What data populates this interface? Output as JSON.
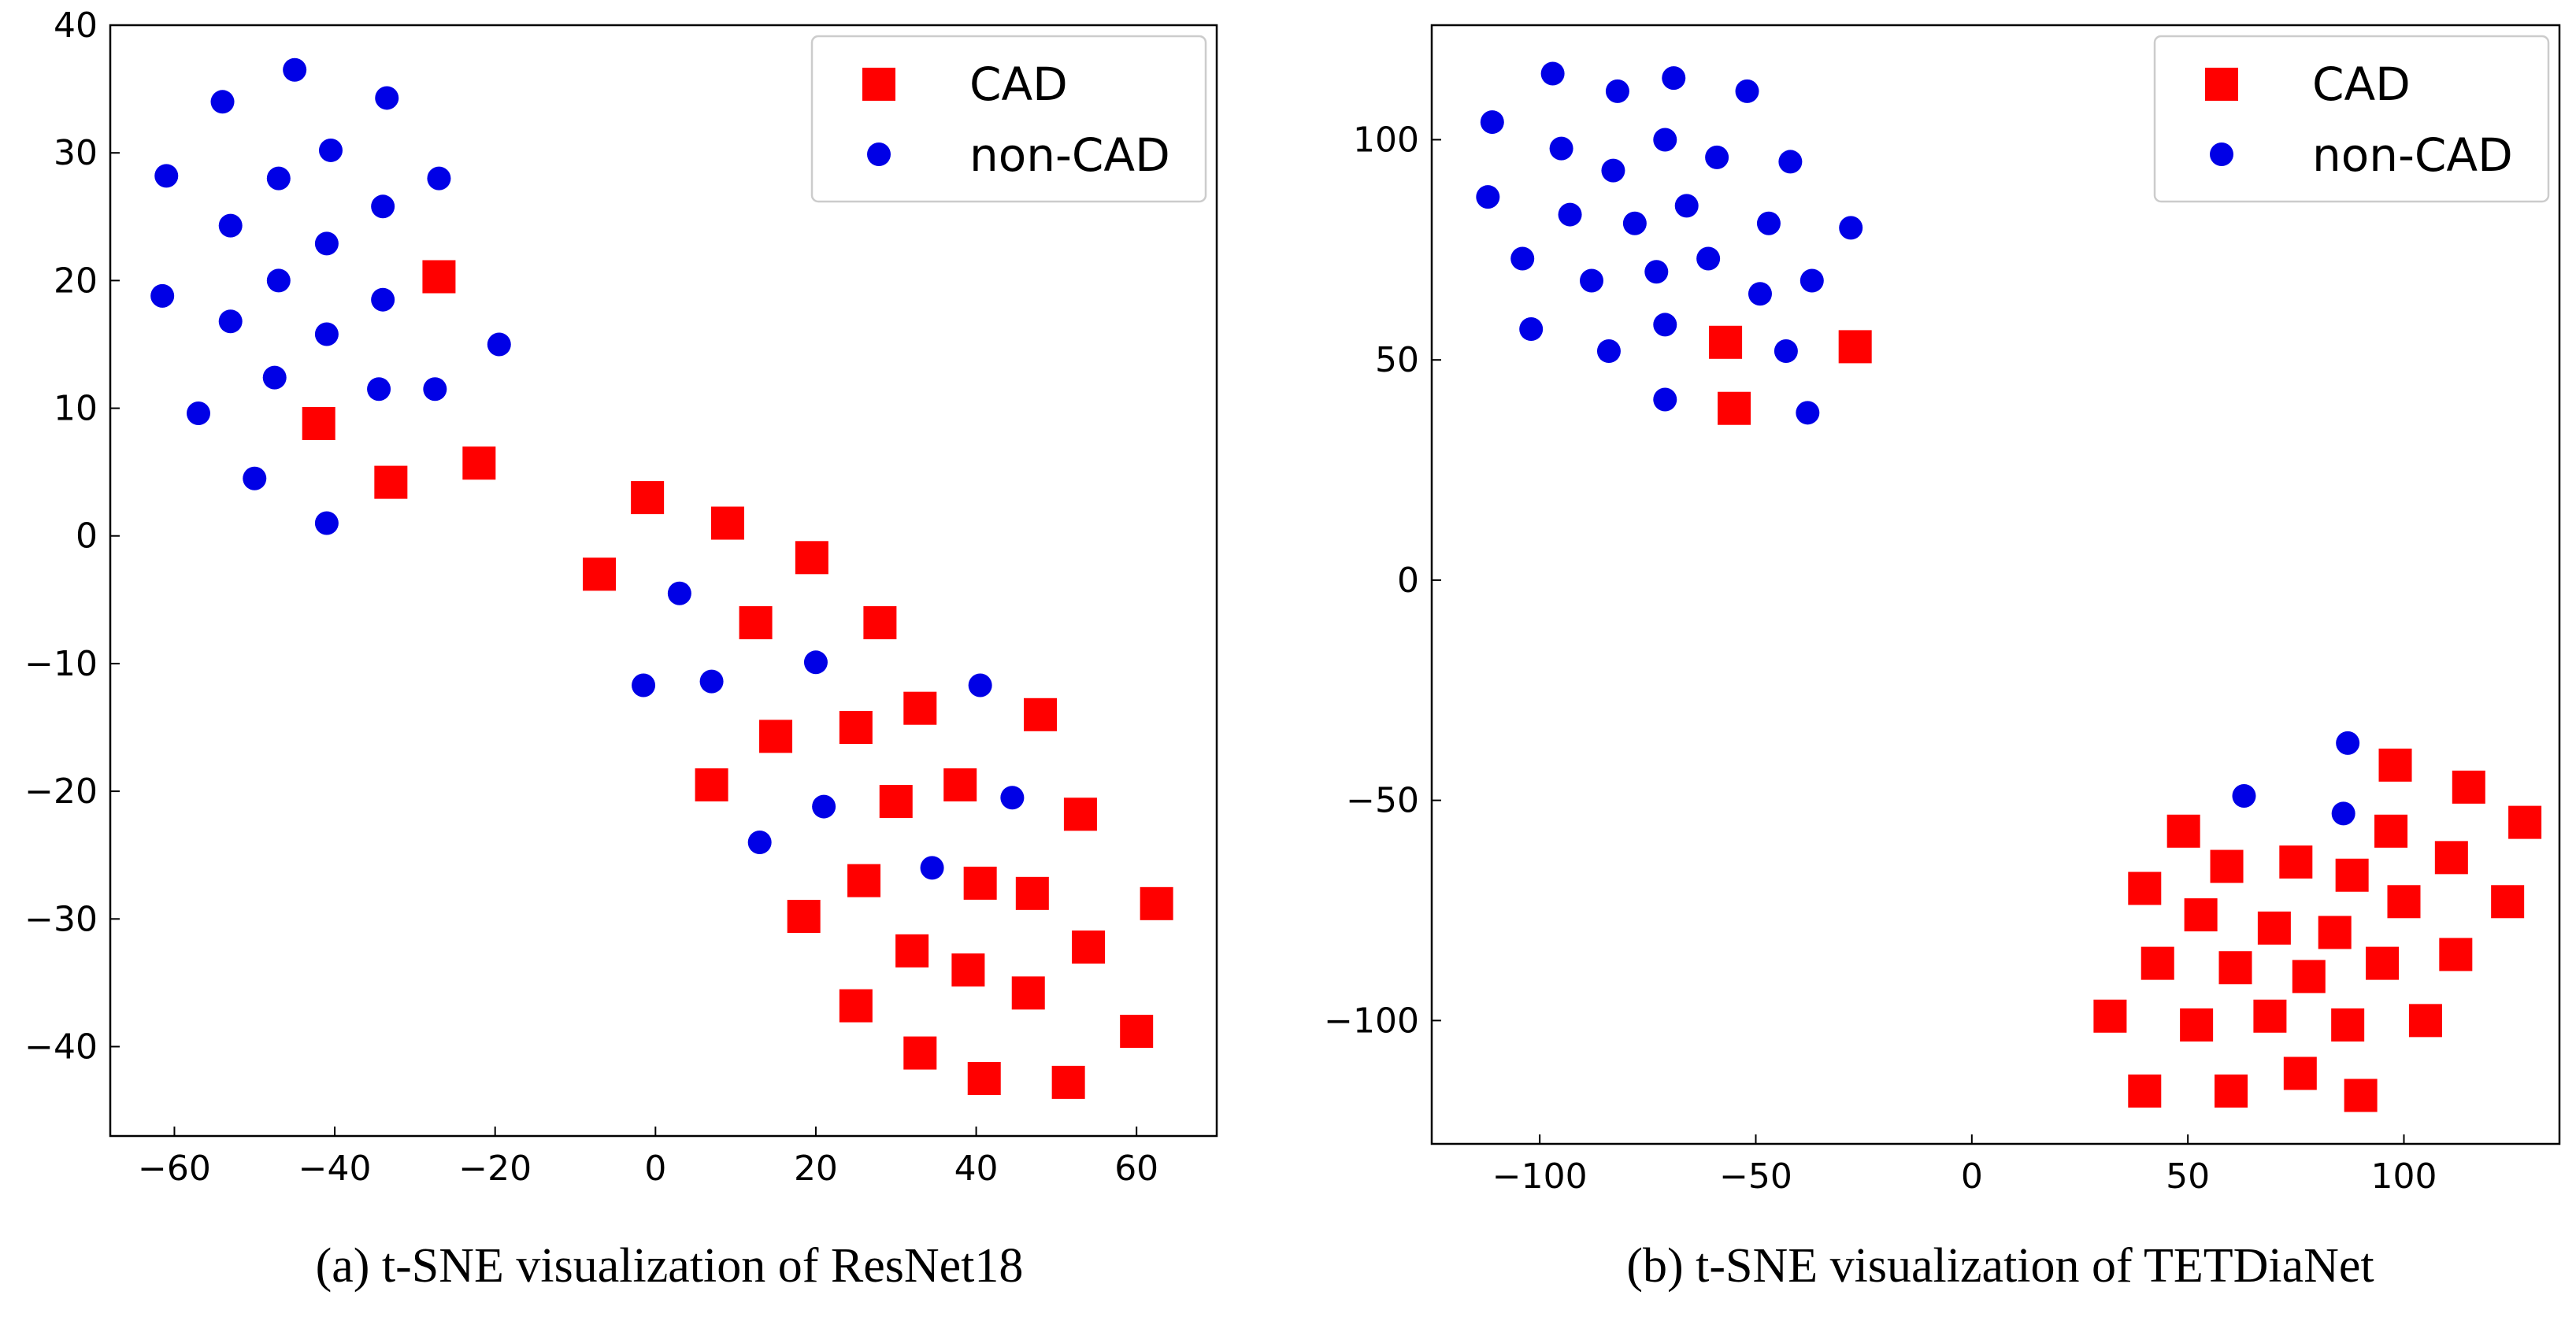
{
  "colors": {
    "cad": "#ff0000",
    "non_cad": "#0000e6",
    "axis": "#000000",
    "legend_border": "#cccccc"
  },
  "chart_data": [
    {
      "type": "scatter",
      "title": "",
      "caption": "(a) t-SNE visualization of ResNet18",
      "xlabel": "",
      "ylabel": "",
      "xlim": [
        -68,
        70
      ],
      "ylim": [
        -47,
        40
      ],
      "xticks": [
        -60,
        -40,
        -20,
        0,
        20,
        40,
        60
      ],
      "yticks": [
        -40,
        -30,
        -20,
        -10,
        0,
        10,
        20,
        30,
        40
      ],
      "xtick_labels": [
        "−60",
        "−40",
        "−20",
        "0",
        "20",
        "40",
        "60"
      ],
      "ytick_labels": [
        "−40",
        "−30",
        "−20",
        "−10",
        "0",
        "10",
        "20",
        "30",
        "40"
      ],
      "legend": {
        "position": "top-right",
        "entries": [
          "CAD",
          "non-CAD"
        ]
      },
      "series": [
        {
          "name": "CAD",
          "marker": "square",
          "points": [
            [
              -27,
              20.3
            ],
            [
              -42,
              8.8
            ],
            [
              -33,
              4.2
            ],
            [
              -22,
              5.7
            ],
            [
              -7,
              -3
            ],
            [
              -1,
              3
            ],
            [
              9,
              1
            ],
            [
              19.5,
              -1.7
            ],
            [
              12.5,
              -6.8
            ],
            [
              28,
              -6.8
            ],
            [
              25,
              -15
            ],
            [
              33,
              -13.5
            ],
            [
              48,
              -14
            ],
            [
              15,
              -15.7
            ],
            [
              7,
              -19.5
            ],
            [
              30,
              -20.8
            ],
            [
              38,
              -19.5
            ],
            [
              53,
              -21.8
            ],
            [
              26,
              -27
            ],
            [
              40.5,
              -27.2
            ],
            [
              47,
              -28
            ],
            [
              18.5,
              -29.8
            ],
            [
              32,
              -32.5
            ],
            [
              39,
              -34
            ],
            [
              54,
              -32.2
            ],
            [
              62.5,
              -28.8
            ],
            [
              25,
              -36.8
            ],
            [
              46.5,
              -35.8
            ],
            [
              60,
              -38.8
            ],
            [
              33,
              -40.5
            ],
            [
              41,
              -42.5
            ],
            [
              51.5,
              -42.8
            ]
          ]
        },
        {
          "name": "non-CAD",
          "marker": "circle",
          "points": [
            [
              -45,
              36.5
            ],
            [
              -54,
              34
            ],
            [
              -33.5,
              34.3
            ],
            [
              -61,
              28.2
            ],
            [
              -47,
              28
            ],
            [
              -40.5,
              30.2
            ],
            [
              -27,
              28
            ],
            [
              -53,
              24.3
            ],
            [
              -34,
              25.8
            ],
            [
              -41,
              22.9
            ],
            [
              -47,
              20
            ],
            [
              -61.5,
              18.8
            ],
            [
              -34,
              18.5
            ],
            [
              -53,
              16.8
            ],
            [
              -41,
              15.8
            ],
            [
              -19.5,
              15
            ],
            [
              -47.5,
              12.4
            ],
            [
              -34.5,
              11.5
            ],
            [
              -27.5,
              11.5
            ],
            [
              -57,
              9.6
            ],
            [
              -50,
              4.5
            ],
            [
              -41,
              1
            ],
            [
              3,
              -4.5
            ],
            [
              -1.5,
              -11.7
            ],
            [
              7,
              -11.4
            ],
            [
              20,
              -9.9
            ],
            [
              40.5,
              -11.7
            ],
            [
              21,
              -21.2
            ],
            [
              44.5,
              -20.5
            ],
            [
              13,
              -24
            ],
            [
              34.5,
              -26
            ]
          ]
        }
      ]
    },
    {
      "type": "scatter",
      "title": "",
      "caption": "(b) t-SNE visualization of TETDiaNet",
      "xlabel": "",
      "ylabel": "",
      "xlim": [
        -125,
        136
      ],
      "ylim": [
        -128,
        126
      ],
      "xticks": [
        -100,
        -50,
        0,
        50,
        100
      ],
      "yticks": [
        -100,
        -50,
        0,
        50,
        100
      ],
      "xtick_labels": [
        "−100",
        "−50",
        "0",
        "50",
        "100"
      ],
      "ytick_labels": [
        "−100",
        "−50",
        "0",
        "50",
        "100"
      ],
      "legend": {
        "position": "top-right",
        "entries": [
          "CAD",
          "non-CAD"
        ]
      },
      "series": [
        {
          "name": "CAD",
          "marker": "square",
          "points": [
            [
              -57,
              54
            ],
            [
              -27,
              53
            ],
            [
              -55,
              39
            ],
            [
              98,
              -42
            ],
            [
              115,
              -47
            ],
            [
              128,
              -55
            ],
            [
              49,
              -57
            ],
            [
              97,
              -57
            ],
            [
              111,
              -63
            ],
            [
              59,
              -65
            ],
            [
              75,
              -64
            ],
            [
              88,
              -67
            ],
            [
              40,
              -70
            ],
            [
              100,
              -73
            ],
            [
              124,
              -73
            ],
            [
              53,
              -76
            ],
            [
              70,
              -79
            ],
            [
              84,
              -80
            ],
            [
              43,
              -87
            ],
            [
              61,
              -88
            ],
            [
              95,
              -87
            ],
            [
              112,
              -85
            ],
            [
              78,
              -90
            ],
            [
              32,
              -99
            ],
            [
              52,
              -101
            ],
            [
              69,
              -99
            ],
            [
              87,
              -101
            ],
            [
              105,
              -100
            ],
            [
              40,
              -116
            ],
            [
              60,
              -116
            ],
            [
              76,
              -112
            ],
            [
              90,
              -117
            ]
          ]
        },
        {
          "name": "non-CAD",
          "marker": "circle",
          "points": [
            [
              -97,
              115
            ],
            [
              -69,
              114
            ],
            [
              -82,
              111
            ],
            [
              -52,
              111
            ],
            [
              -111,
              104
            ],
            [
              -95,
              98
            ],
            [
              -71,
              100
            ],
            [
              -59,
              96
            ],
            [
              -42,
              95
            ],
            [
              -83,
              93
            ],
            [
              -112,
              87
            ],
            [
              -66,
              85
            ],
            [
              -93,
              83
            ],
            [
              -78,
              81
            ],
            [
              -47,
              81
            ],
            [
              -28,
              80
            ],
            [
              -104,
              73
            ],
            [
              -61,
              73
            ],
            [
              -73,
              70
            ],
            [
              -88,
              68
            ],
            [
              -37,
              68
            ],
            [
              -49,
              65
            ],
            [
              -102,
              57
            ],
            [
              -71,
              58
            ],
            [
              -84,
              52
            ],
            [
              -43,
              52
            ],
            [
              -71,
              41
            ],
            [
              -38,
              38
            ],
            [
              87,
              -37
            ],
            [
              63,
              -49
            ],
            [
              86,
              -53
            ]
          ]
        }
      ]
    }
  ]
}
